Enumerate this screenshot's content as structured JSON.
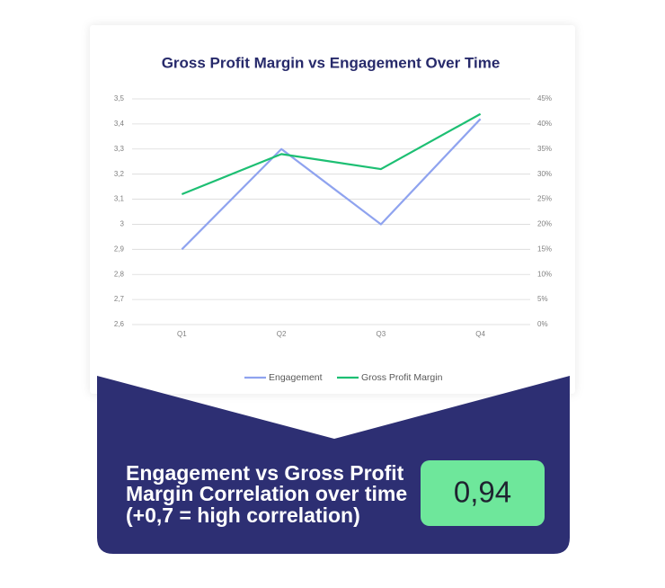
{
  "chart_data": {
    "type": "line",
    "title": "Gross Profit Margin vs Engagement Over Time",
    "categories": [
      "Q1",
      "Q2",
      "Q3",
      "Q4"
    ],
    "series": [
      {
        "name": "Engagement",
        "color": "#8fa3ef",
        "values": [
          2.9,
          3.3,
          3.0,
          3.42
        ]
      },
      {
        "name": "Gross Profit Margin",
        "color": "#1dbf73",
        "axis": "y2",
        "values": [
          26,
          34,
          31,
          42
        ]
      }
    ],
    "ylim": [
      2.6,
      3.5
    ],
    "yticks": [
      {
        "value": 2.6,
        "label": "2,6"
      },
      {
        "value": 2.7,
        "label": "2,7"
      },
      {
        "value": 2.8,
        "label": "2,8"
      },
      {
        "value": 2.9,
        "label": "2,9"
      },
      3,
      {
        "value": 3.1,
        "label": "3,1"
      },
      {
        "value": 3.2,
        "label": "3,2"
      },
      {
        "value": 3.3,
        "label": "3,3"
      },
      {
        "value": 3.4,
        "label": "3,4"
      },
      {
        "value": 3.5,
        "label": "3,5"
      }
    ],
    "y2lim": [
      0,
      45
    ],
    "y2ticks": [
      {
        "value": 0,
        "label": "0%"
      },
      {
        "value": 5,
        "label": "5%"
      },
      {
        "value": 10,
        "label": "10%"
      },
      {
        "value": 15,
        "label": "15%"
      },
      {
        "value": 20,
        "label": "20%"
      },
      {
        "value": 25,
        "label": "25%"
      },
      {
        "value": 30,
        "label": "30%"
      },
      {
        "value": 35,
        "label": "35%"
      },
      {
        "value": 40,
        "label": "40%"
      },
      {
        "value": 45,
        "label": "45%"
      }
    ],
    "grid": true,
    "legend": "bottom"
  },
  "summary": {
    "lines": [
      "Engagement vs Gross Profit",
      "Margin Correlation over time",
      "(+0,7 = high correlation)"
    ],
    "score": "0,94"
  }
}
